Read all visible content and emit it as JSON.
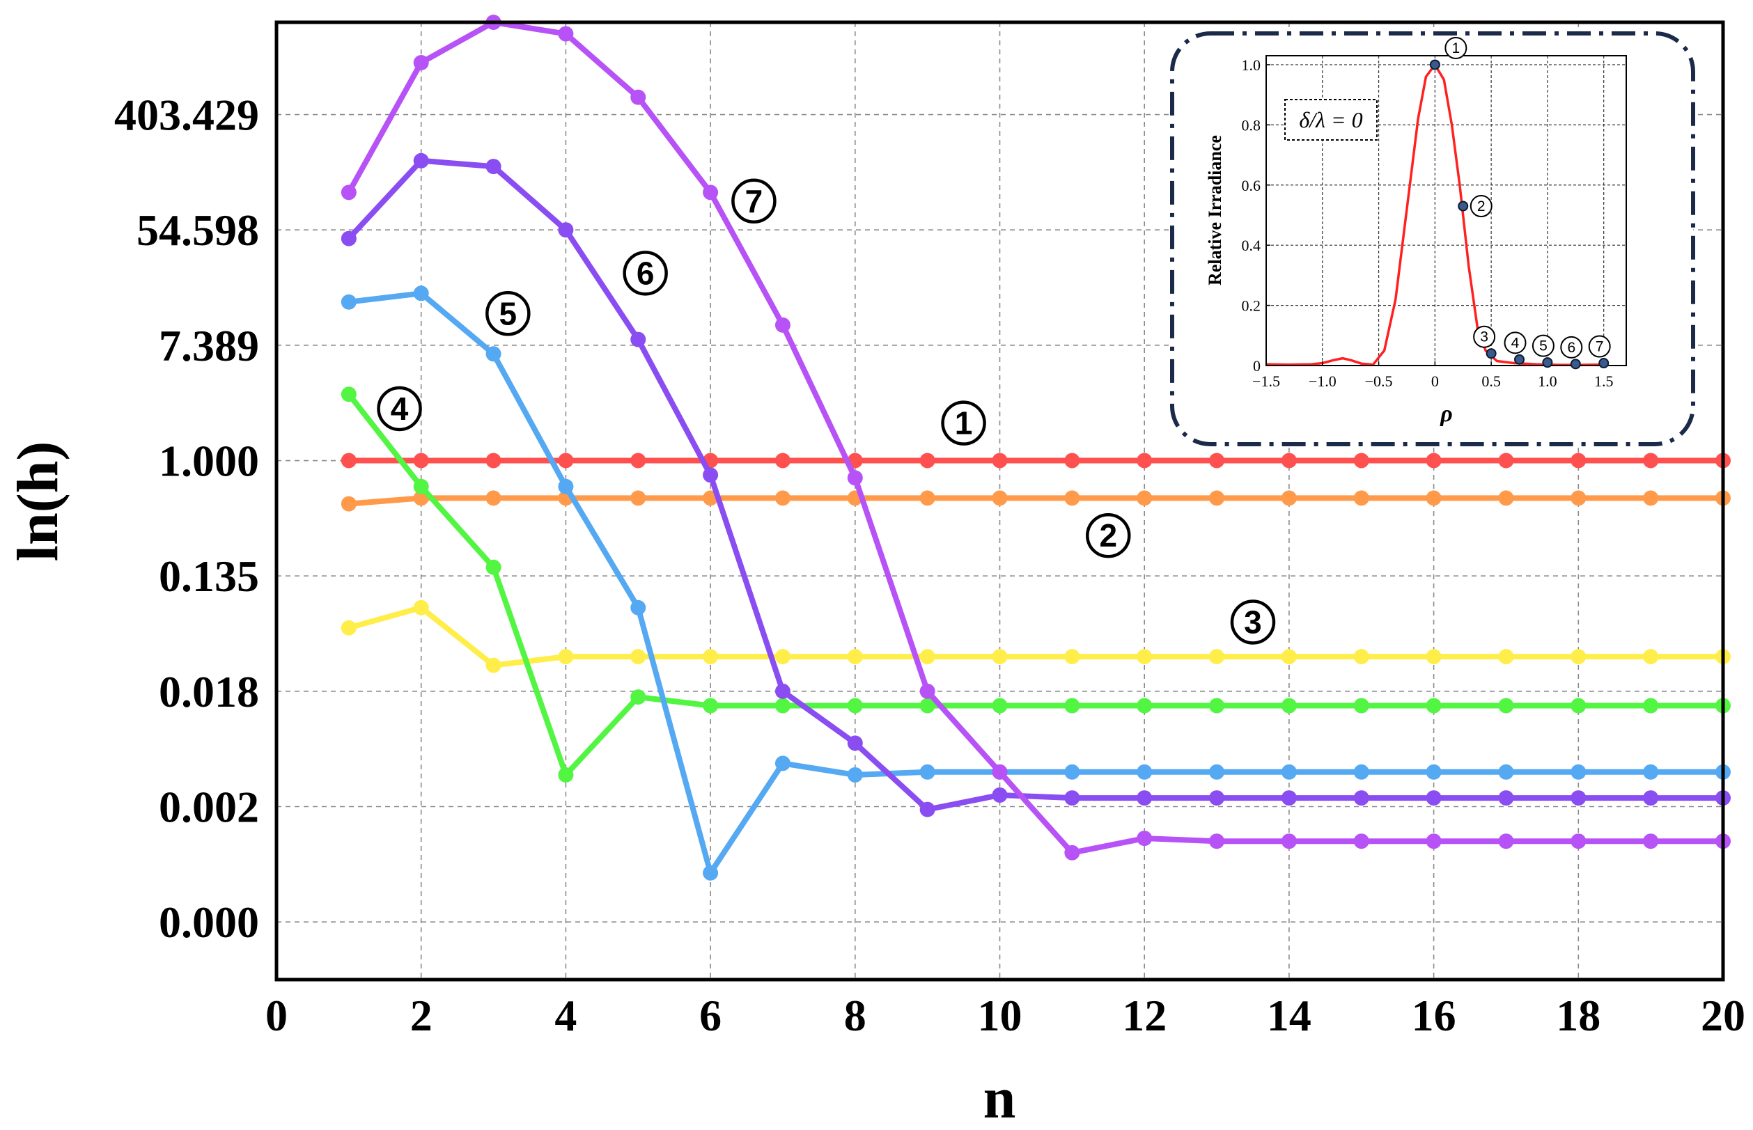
{
  "chart_data": [
    {
      "type": "line",
      "title": "",
      "xlabel": "n",
      "ylabel": "ln(h)",
      "xlim": [
        0,
        20
      ],
      "x_ticks": [
        "0",
        "2",
        "4",
        "6",
        "8",
        "10",
        "12",
        "14",
        "16",
        "18",
        "20"
      ],
      "y_scale": "ln",
      "ylim_ln": [
        -9,
        7.6
      ],
      "y_ticks": [
        {
          "label": "0.000",
          "ln": -8
        },
        {
          "label": "0.002",
          "ln": -6
        },
        {
          "label": "0.018",
          "ln": -4
        },
        {
          "label": "0.135",
          "ln": -2
        },
        {
          "label": "1.000",
          "ln": 0
        },
        {
          "label": "7.389",
          "ln": 2
        },
        {
          "label": "54.598",
          "ln": 4
        },
        {
          "label": "403.429",
          "ln": 6
        }
      ],
      "grid": true,
      "x": [
        1,
        2,
        3,
        4,
        5,
        6,
        7,
        8,
        9,
        10,
        11,
        12,
        13,
        14,
        15,
        16,
        17,
        18,
        19,
        20
      ],
      "series": [
        {
          "name": "①",
          "color": "#ff5050",
          "label_at": [
            9.5,
            0.65
          ],
          "values_ln": [
            0,
            0,
            0,
            0,
            0,
            0,
            0,
            0,
            0,
            0,
            0,
            0,
            0,
            0,
            0,
            0,
            0,
            0,
            0,
            0
          ]
        },
        {
          "name": "②",
          "color": "#ff9a4a",
          "label_at": [
            11.5,
            -1.3
          ],
          "values_ln": [
            -0.75,
            -0.65,
            -0.65,
            -0.65,
            -0.65,
            -0.65,
            -0.65,
            -0.65,
            -0.65,
            -0.65,
            -0.65,
            -0.65,
            -0.65,
            -0.65,
            -0.65,
            -0.65,
            -0.65,
            -0.65,
            -0.65,
            -0.65
          ]
        },
        {
          "name": "③",
          "color": "#ffee4a",
          "label_at": [
            13.5,
            -2.8
          ],
          "values_ln": [
            -2.9,
            -2.55,
            -3.55,
            -3.4,
            -3.4,
            -3.4,
            -3.4,
            -3.4,
            -3.4,
            -3.4,
            -3.4,
            -3.4,
            -3.4,
            -3.4,
            -3.4,
            -3.4,
            -3.4,
            -3.4,
            -3.4,
            -3.4
          ]
        },
        {
          "name": "④",
          "color": "#52f542",
          "label_at": [
            1.7,
            0.9
          ],
          "values_ln": [
            1.15,
            -0.45,
            -1.85,
            -5.45,
            -4.1,
            -4.25,
            -4.25,
            -4.25,
            -4.25,
            -4.25,
            -4.25,
            -4.25,
            -4.25,
            -4.25,
            -4.25,
            -4.25,
            -4.25,
            -4.25,
            -4.25,
            -4.25
          ]
        },
        {
          "name": "⑤",
          "color": "#55a8f2",
          "label_at": [
            3.2,
            2.55
          ],
          "values_ln": [
            2.75,
            2.9,
            1.85,
            -0.45,
            -2.55,
            -7.15,
            -5.25,
            -5.45,
            -5.4,
            -5.4,
            -5.4,
            -5.4,
            -5.4,
            -5.4,
            -5.4,
            -5.4,
            -5.4,
            -5.4,
            -5.4,
            -5.4
          ]
        },
        {
          "name": "⑥",
          "color": "#8a4df2",
          "label_at": [
            5.1,
            3.25
          ],
          "values_ln": [
            3.85,
            5.2,
            5.1,
            4.0,
            2.1,
            -0.25,
            -4.0,
            -4.9,
            -6.05,
            -5.8,
            -5.85,
            -5.85,
            -5.85,
            -5.85,
            -5.85,
            -5.85,
            -5.85,
            -5.85,
            -5.85,
            -5.85
          ]
        },
        {
          "name": "⑦",
          "color": "#b752f7",
          "label_at": [
            6.6,
            4.5
          ],
          "values_ln": [
            4.65,
            6.9,
            7.6,
            7.4,
            6.3,
            4.65,
            2.35,
            -0.3,
            -4.0,
            -5.4,
            -6.8,
            -6.55,
            -6.6,
            -6.6,
            -6.6,
            -6.6,
            -6.6,
            -6.6,
            -6.6,
            -6.6
          ]
        }
      ]
    },
    {
      "type": "line",
      "title": "",
      "xlabel": "ρ",
      "ylabel": "Relative Irradiance",
      "xlim": [
        -1.5,
        1.7
      ],
      "ylim": [
        0,
        1.03
      ],
      "x_ticks": [
        "−1.5",
        "−1.0",
        "−0.5",
        "0",
        "0.5",
        "1.0",
        "1.5"
      ],
      "x_tick_values": [
        -1.5,
        -1.0,
        -0.5,
        0,
        0.5,
        1.0,
        1.5
      ],
      "y_ticks": [
        "0",
        "0.2",
        "0.4",
        "0.6",
        "0.8",
        "1.0"
      ],
      "y_tick_values": [
        0,
        0.2,
        0.4,
        0.6,
        0.8,
        1.0
      ],
      "grid": true,
      "annotation": "δ/λ = 0",
      "curve_color": "#ff2020",
      "curve": {
        "x": [
          -1.5,
          -1.3,
          -1.1,
          -1.0,
          -0.9,
          -0.82,
          -0.75,
          -0.65,
          -0.55,
          -0.45,
          -0.35,
          -0.25,
          -0.15,
          -0.08,
          0.0,
          0.08,
          0.15,
          0.22,
          0.3,
          0.38,
          0.45,
          0.55,
          0.7,
          0.9,
          1.1,
          1.3,
          1.5
        ],
        "y": [
          0.004,
          0.003,
          0.004,
          0.008,
          0.018,
          0.024,
          0.018,
          0.006,
          0.003,
          0.05,
          0.22,
          0.52,
          0.82,
          0.96,
          1.0,
          0.95,
          0.8,
          0.6,
          0.33,
          0.12,
          0.05,
          0.015,
          0.008,
          0.004,
          0.002,
          0.002,
          0.003
        ]
      },
      "points": [
        {
          "label": "①",
          "x": 0.0,
          "y": 1.0
        },
        {
          "label": "②",
          "x": 0.25,
          "y": 0.53
        },
        {
          "label": "③",
          "x": 0.5,
          "y": 0.04
        },
        {
          "label": "④",
          "x": 0.75,
          "y": 0.02
        },
        {
          "label": "⑤",
          "x": 1.0,
          "y": 0.01
        },
        {
          "label": "⑥",
          "x": 1.25,
          "y": 0.005
        },
        {
          "label": "⑦",
          "x": 1.5,
          "y": 0.008
        }
      ]
    }
  ]
}
